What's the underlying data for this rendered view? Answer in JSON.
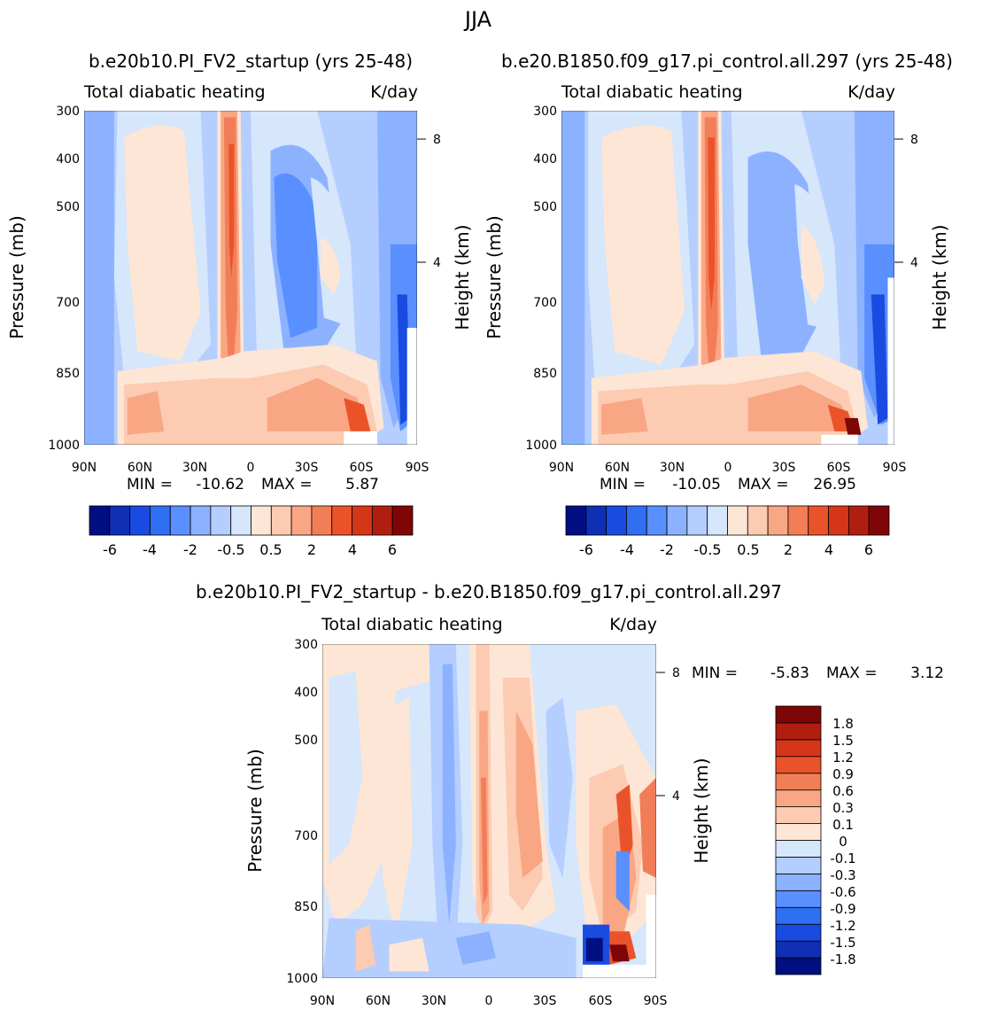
{
  "page_title": "JJA",
  "colors": {
    "neg": [
      "#000f82",
      "#0f2fb4",
      "#1a4be0",
      "#2f6ff2",
      "#5a8fff",
      "#8cb2ff",
      "#b4ceff",
      "#d6e6fb"
    ],
    "pos": [
      "#fde6d5",
      "#fccbb2",
      "#f9a685",
      "#f27e58",
      "#ea5329",
      "#d63618",
      "#b01e10",
      "#7f0606"
    ]
  },
  "chart_data": [
    {
      "id": "model",
      "type": "heatmap",
      "title": "b.e20b10.PI_FV2_startup (yrs 25-48)",
      "subtitle_left": "Total diabatic heating",
      "subtitle_right": "K/day",
      "xlabel": "",
      "ylabel": "Pressure (mb)",
      "ylabel_right": "Height (km)",
      "x_ticks": [
        "90N",
        "60N",
        "30N",
        "0",
        "30S",
        "60S",
        "90S"
      ],
      "y_ticks": [
        "300",
        "400",
        "500",
        "700",
        "850",
        "1000"
      ],
      "y_ticks_right": [
        "8",
        "4"
      ],
      "stats": {
        "min_label": "MIN =",
        "min": "-10.62",
        "max_label": "MAX =",
        "max": "5.87"
      },
      "colorbar_ticks": [
        "-6",
        "-4",
        "-2",
        "-0.5",
        "0.5",
        "2",
        "4",
        "6"
      ]
    },
    {
      "id": "control",
      "type": "heatmap",
      "title": "b.e20.B1850.f09_g17.pi_control.all.297 (yrs 25-48)",
      "subtitle_left": "Total diabatic heating",
      "subtitle_right": "K/day",
      "xlabel": "",
      "ylabel": "Pressure (mb)",
      "ylabel_right": "Height (km)",
      "x_ticks": [
        "90N",
        "60N",
        "30N",
        "0",
        "30S",
        "60S",
        "90S"
      ],
      "y_ticks": [
        "300",
        "400",
        "500",
        "700",
        "850",
        "1000"
      ],
      "y_ticks_right": [
        "8",
        "4"
      ],
      "stats": {
        "min_label": "MIN =",
        "min": "-10.05",
        "max_label": "MAX =",
        "max": "26.95"
      },
      "colorbar_ticks": [
        "-6",
        "-4",
        "-2",
        "-0.5",
        "0.5",
        "2",
        "4",
        "6"
      ]
    },
    {
      "id": "difference",
      "type": "heatmap",
      "title": "b.e20b10.PI_FV2_startup - b.e20.B1850.f09_g17.pi_control.all.297",
      "subtitle_left": "Total diabatic heating",
      "subtitle_right": "K/day",
      "xlabel": "",
      "ylabel": "Pressure (mb)",
      "ylabel_right": "Height (km)",
      "x_ticks": [
        "90N",
        "60N",
        "30N",
        "0",
        "30S",
        "60S",
        "90S"
      ],
      "y_ticks": [
        "300",
        "400",
        "500",
        "700",
        "850",
        "1000"
      ],
      "y_ticks_right": [
        "8",
        "4"
      ],
      "stats": {
        "min_label": "MIN =",
        "min": "-5.83",
        "max_label": "MAX =",
        "max": "3.12"
      },
      "colorbar_ticks": [
        "1.8",
        "1.5",
        "1.2",
        "0.9",
        "0.6",
        "0.3",
        "0.1",
        "0",
        "-0.1",
        "-0.3",
        "-0.6",
        "-0.9",
        "-1.2",
        "-1.5",
        "-1.8"
      ]
    }
  ]
}
